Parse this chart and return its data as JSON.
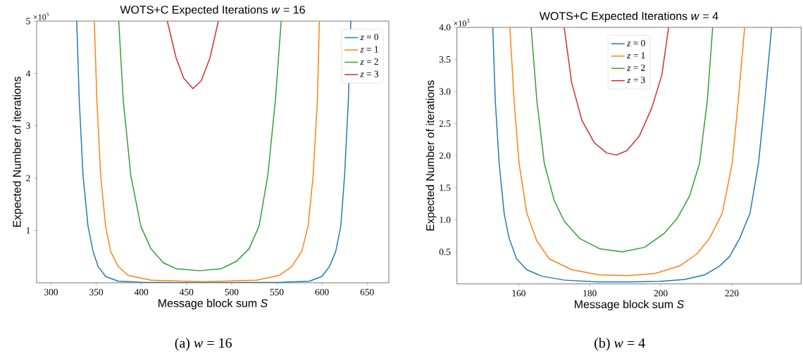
{
  "chart_data": [
    {
      "type": "line",
      "title": "WOTS+C Expected Iterations *w* = 16",
      "xlabel": "Message block sum *S*",
      "ylabel": "Expected Number of iterations",
      "annotations": [
        "×10$^{5}$",
        "(a) *w* = 16"
      ],
      "xlim": [
        284,
        674
      ],
      "xticks": [
        300,
        350,
        400,
        450,
        500,
        550,
        600,
        650
      ],
      "ylim": [
        0,
        5
      ],
      "yticks": [
        1,
        2,
        3,
        4,
        5
      ],
      "legend": "top right",
      "series": [
        {
          "name": "*z* = 0",
          "color": "#1f77b4",
          "x": [
            328.4,
            331.2,
            335.4,
            340.9,
            346.5,
            352.1,
            360.4,
            374.4,
            399.4,
            470,
            555.4,
            586,
            599.9,
            608.3,
            615.2,
            620.8,
            625.0,
            629.2,
            631.9
          ],
          "values": [
            5,
            3.49,
            2.05,
            1.08,
            0.6,
            0.31,
            0.12,
            0.03,
            0.01,
            0,
            0.01,
            0.03,
            0.12,
            0.31,
            0.6,
            1.08,
            2.05,
            3.49,
            5
          ]
        },
        {
          "name": "*z* = 1",
          "color": "#ff7f0e",
          "x": [
            347.9,
            350.7,
            354.9,
            360.4,
            366,
            374.4,
            385.5,
            410.6,
            470,
            527.5,
            552.6,
            566.5,
            577.6,
            584.6,
            590.2,
            594.9,
            597.1
          ],
          "values": [
            5,
            3.49,
            2.05,
            1.08,
            0.6,
            0.31,
            0.14,
            0.05,
            0.02,
            0.05,
            0.14,
            0.31,
            0.6,
            1.08,
            2.05,
            3.49,
            5
          ]
        },
        {
          "name": "*z* = 2",
          "color": "#2ca02c",
          "x": [
            374.9,
            379.9,
            388.3,
            399.4,
            410.6,
            424.5,
            438.4,
            464.3,
            488.5,
            505.2,
            519.2,
            530.3,
            540.0,
            548.4,
            554.8
          ],
          "values": [
            5,
            3.49,
            2.05,
            1.08,
            0.65,
            0.38,
            0.27,
            0.23,
            0.27,
            0.41,
            0.65,
            1.08,
            2.05,
            3.49,
            5
          ]
        },
        {
          "name": "*z* = 3",
          "color": "#d62728",
          "x": [
            428.7,
            438.4,
            446.8,
            457.1,
            466.3,
            476.0,
            485.2
          ],
          "values": [
            5,
            4.3,
            3.91,
            3.71,
            3.86,
            4.3,
            5
          ]
        }
      ]
    },
    {
      "type": "line",
      "title": "WOTS+C Expected Iterations *w* = 4",
      "xlabel": "Message block sum *S*",
      "ylabel": "Expected Number of iterations",
      "annotations": [
        "×10$^{3}$",
        "(b) *w* = 4"
      ],
      "xlim": [
        142.6,
        239.5
      ],
      "xticks": [
        160,
        180,
        200,
        220
      ],
      "ylim": [
        0,
        4
      ],
      "yticks": [
        0.5,
        {
          "value": 1,
          "label": "1.0"
        },
        1.5,
        {
          "value": 2,
          "label": "2.0"
        },
        2.5,
        {
          "value": 3,
          "label": "3.0"
        },
        3.5,
        {
          "value": 4,
          "label": "4.0"
        }
      ],
      "legend": "top",
      "series": [
        {
          "name": "*z* = 0",
          "color": "#1f77b4",
          "x": [
            152.7,
            153.4,
            154.5,
            155.9,
            157.3,
            159.4,
            162.3,
            166.5,
            172.8,
            182,
            191.2,
            199.6,
            206.7,
            212.3,
            216.6,
            219.4,
            222.2,
            225.1,
            227.5,
            229.3,
            231.2
          ],
          "values": [
            4.0,
            2.86,
            1.88,
            1.1,
            0.71,
            0.39,
            0.22,
            0.12,
            0.06,
            0.03,
            0.03,
            0.04,
            0.07,
            0.14,
            0.28,
            0.43,
            0.71,
            1.1,
            1.88,
            2.86,
            4.0
          ]
        },
        {
          "name": "*z* = 1",
          "color": "#ff7f0e",
          "x": [
            157.5,
            158.7,
            160.1,
            162.3,
            165.1,
            168.6,
            175,
            182.7,
            190.5,
            198.2,
            205.3,
            210.2,
            213.7,
            217.3,
            220.1,
            221.8,
            223.6
          ],
          "values": [
            4.0,
            2.86,
            1.88,
            1.1,
            0.67,
            0.39,
            0.22,
            0.14,
            0.13,
            0.16,
            0.28,
            0.47,
            0.71,
            1.1,
            1.88,
            2.86,
            4.0
          ]
        },
        {
          "name": "*z* = 2",
          "color": "#2ca02c",
          "x": [
            163.5,
            165.1,
            167.2,
            170,
            172.8,
            177.1,
            182.7,
            189.1,
            195.4,
            201,
            204.6,
            208.1,
            210.9,
            213.1,
            214.6
          ],
          "values": [
            4.0,
            2.86,
            1.88,
            1.3,
            0.98,
            0.71,
            0.55,
            0.5,
            0.57,
            0.79,
            1.02,
            1.37,
            1.88,
            2.86,
            4.0
          ]
        },
        {
          "name": "*z* = 3",
          "color": "#d62728",
          "x": [
            172.8,
            174.9,
            177.8,
            181.3,
            184.8,
            187.5,
            190.5,
            194,
            197.5,
            200.3,
            202.2
          ],
          "values": [
            4.0,
            3.14,
            2.55,
            2.2,
            2.04,
            2.01,
            2.08,
            2.31,
            2.75,
            3.26,
            4.0
          ]
        }
      ]
    }
  ]
}
